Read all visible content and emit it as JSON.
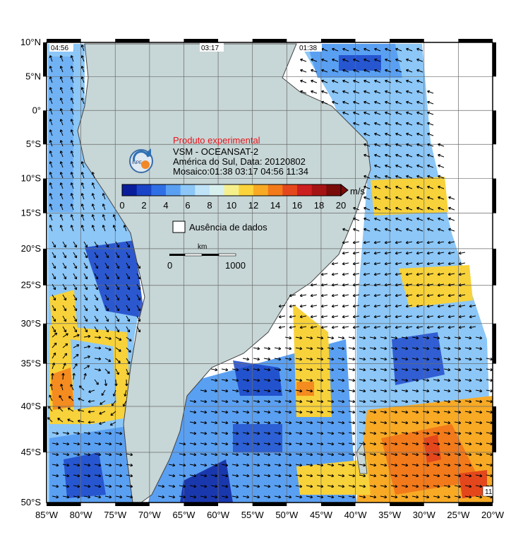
{
  "map": {
    "lat_labels": [
      "10°N",
      "5°N",
      "0°",
      "5°S",
      "10°S",
      "15°S",
      "20°S",
      "25°S",
      "30°S",
      "35°S",
      "40°S",
      "45°S",
      "50°S"
    ],
    "lon_labels": [
      "85°W",
      "80°W",
      "75°W",
      "70°W",
      "65°W",
      "60°W",
      "55°W",
      "50°W",
      "45°W",
      "40°W",
      "35°W",
      "30°W",
      "25°W",
      "20°W"
    ],
    "pass_times": [
      "04:56",
      "03:17",
      "01:38"
    ],
    "corner_badge": "11"
  },
  "info": {
    "product": "Produto experimental",
    "sensor": "VSM - OCEANSAT-2",
    "region_date": "América do Sul, Data: 20120802",
    "mosaic": "Mosaico:01:38 03:17 04:56 11:34",
    "logo_text": "INPE"
  },
  "colorbar": {
    "unit": "m/s",
    "ticks": [
      "0",
      "2",
      "4",
      "6",
      "8",
      "10",
      "12",
      "14",
      "16",
      "18",
      "20"
    ],
    "colors": [
      "#0a1e9b",
      "#1a44c8",
      "#2f6fe6",
      "#5aa0f2",
      "#8cc7f7",
      "#bfe3f7",
      "#d7f0ee",
      "#f6f08c",
      "#fbd33b",
      "#f8aa25",
      "#f27a1a",
      "#e4471c",
      "#cc1f1f",
      "#a51414",
      "#7a0b0b"
    ]
  },
  "legend": {
    "no_data_label": "Ausência de dados"
  },
  "scale_bar": {
    "unit": "km",
    "start": "0",
    "end": "1000"
  },
  "colors": {
    "land": "#c7d6d6",
    "grid": "#6a6a6a",
    "arrow": "#000000",
    "low_wind": "#8cc7f7",
    "strong_wind": "#f8d23a"
  }
}
